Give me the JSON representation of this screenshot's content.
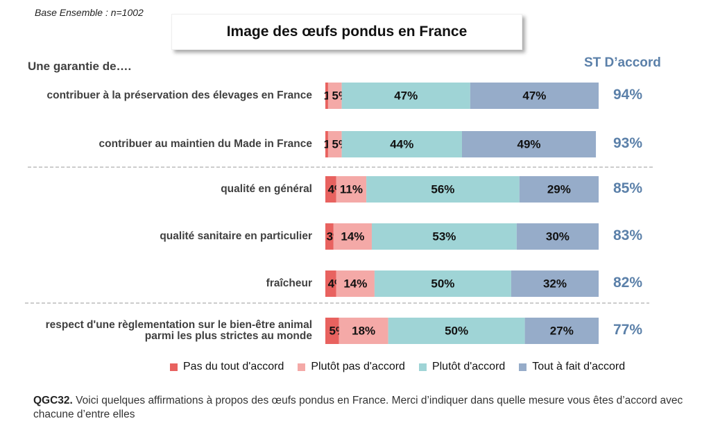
{
  "base_note": "Base Ensemble : n=1002",
  "chart_data": {
    "type": "stacked-bar-horizontal",
    "title": "Image des œufs pondus en France",
    "subtitle": "Une garantie de….",
    "categories": [
      "contribuer à la préservation des élevages en France",
      "contribuer au maintien du Made in France",
      "qualité en général",
      "qualité sanitaire en particulier",
      "fraîcheur",
      "respect d'une règlementation sur le bien-être animal parmi les plus strictes au monde"
    ],
    "xlim": [
      0,
      100
    ],
    "series": [
      {
        "name": "Pas du tout d'accord",
        "color": "#e8625f",
        "values": [
          1,
          1,
          4,
          3,
          4,
          5
        ],
        "value_labels": [
          "1%",
          "1%",
          "4%",
          "3%",
          "4%",
          "5%"
        ]
      },
      {
        "name": "Plutôt pas d'accord",
        "color": "#f4a9a7",
        "values": [
          5,
          5,
          11,
          14,
          14,
          18
        ],
        "value_labels": [
          "5%",
          "5%",
          "11%",
          "14%",
          "14%",
          "18%"
        ]
      },
      {
        "name": "Plutôt d'accord",
        "color": "#9fd4d6",
        "values": [
          47,
          44,
          56,
          53,
          50,
          50
        ],
        "value_labels": [
          "47%",
          "44%",
          "56%",
          "53%",
          "50%",
          "50%"
        ]
      },
      {
        "name": "Tout à fait d'accord",
        "color": "#96acc9",
        "values": [
          47,
          49,
          29,
          30,
          32,
          27
        ],
        "value_labels": [
          "47%",
          "49%",
          "29%",
          "30%",
          "32%",
          "27%"
        ]
      }
    ],
    "total": {
      "name": "ST D’accord",
      "color": "#5b80a9",
      "values": [
        94,
        93,
        85,
        83,
        82,
        77
      ],
      "value_labels": [
        "94%",
        "93%",
        "85%",
        "83%",
        "82%",
        "77%"
      ]
    },
    "legend": "bottom"
  },
  "footer": {
    "code": "QGC32.",
    "text": "Voici quelques affirmations à propos des œufs pondus en France. Merci d’indiquer dans quelle mesure vous êtes d’accord avec chacune d’entre elles"
  }
}
